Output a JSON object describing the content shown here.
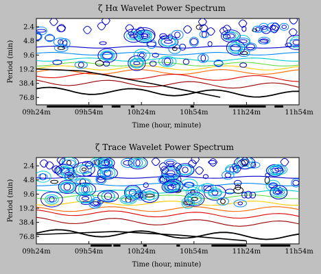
{
  "chart_data": [
    {
      "type": "heatmap",
      "subtype": "wavelet-power-contour",
      "title": "ζ Hα Wavelet Power Spectrum",
      "xlabel": "Time (hour, minute)",
      "ylabel": "Period (min)",
      "x_ticks": [
        "09h24m",
        "09h54m",
        "10h24m",
        "10h54m",
        "11h24m",
        "11h54m"
      ],
      "y_ticks": [
        "2.4",
        "4.8",
        "9.6",
        "19.2",
        "38.4",
        "76.8"
      ],
      "y_scale": "log2",
      "xlim_minutes_after_0924": [
        0,
        150
      ],
      "ylim_period_min": [
        1.6,
        110
      ],
      "contour_colors": [
        "#0000cc",
        "#0088ff",
        "#00cccc",
        "#66dd44",
        "#ffcc00",
        "#ff6600",
        "#dd0000",
        "#990000",
        "#000000"
      ],
      "gap_marks_minutes_after_0924": [
        [
          6,
          38
        ],
        [
          43,
          48
        ],
        [
          54,
          56
        ],
        [
          88,
          90
        ],
        [
          110,
          131
        ],
        [
          136,
          141
        ]
      ]
    },
    {
      "type": "heatmap",
      "subtype": "wavelet-power-contour",
      "title": "ζ Trace Wavelet Power Spectrum",
      "xlabel": "Time (hour, minute)",
      "ylabel": "Period (min)",
      "x_ticks": [
        "09h24m",
        "09h54m",
        "10h24m",
        "10h54m",
        "11h24m",
        "11h54m"
      ],
      "y_ticks": [
        "2.4",
        "4.8",
        "9.6",
        "19.2",
        "38.4",
        "76.8"
      ],
      "y_scale": "log2",
      "xlim_minutes_after_0924": [
        0,
        150
      ],
      "ylim_period_min": [
        1.6,
        110
      ],
      "contour_colors": [
        "#0000cc",
        "#0088ff",
        "#00cccc",
        "#66dd44",
        "#ffcc00",
        "#ff6600",
        "#dd0000",
        "#990000",
        "#000000"
      ],
      "gap_marks_minutes_after_0924": [
        [
          31,
          43
        ],
        [
          44,
          48
        ],
        [
          61,
          63
        ],
        [
          80,
          82
        ],
        [
          100,
          120
        ],
        [
          128,
          145
        ]
      ]
    }
  ]
}
